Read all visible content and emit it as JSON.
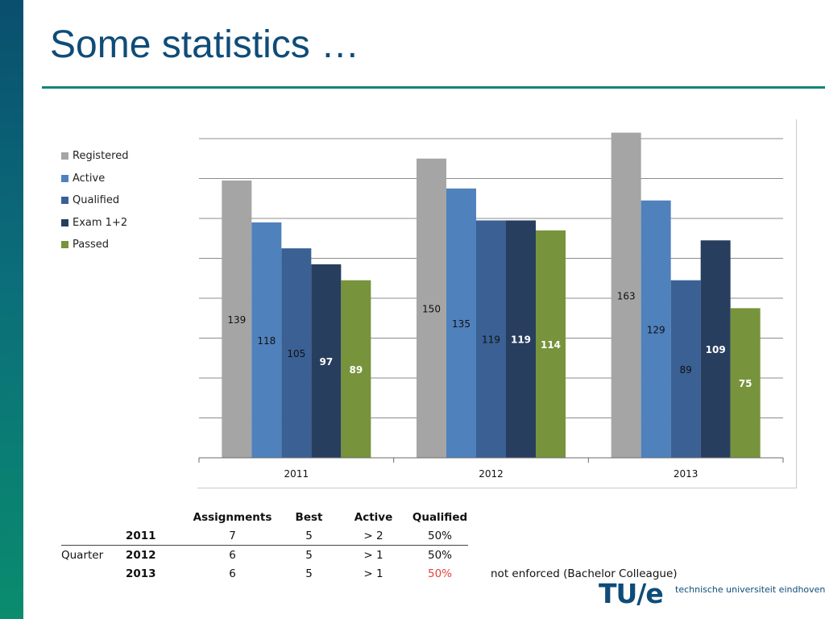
{
  "slide": {
    "title": "Some statistics …"
  },
  "chart_data": {
    "type": "bar",
    "categories": [
      "2011",
      "2012",
      "2013"
    ],
    "ylim": [
      0,
      160
    ],
    "grid": true,
    "legend_position": "left",
    "series": [
      {
        "name": "Registered",
        "color": "#a5a5a5",
        "values": [
          139,
          150,
          163
        ]
      },
      {
        "name": "Active",
        "color": "#4f81bd",
        "values": [
          118,
          135,
          129
        ]
      },
      {
        "name": "Qualified",
        "color": "#3a6094",
        "values": [
          105,
          119,
          89
        ]
      },
      {
        "name": "Exam 1+2",
        "color": "#283e5f",
        "values": [
          97,
          119,
          109
        ]
      },
      {
        "name": "Passed",
        "color": "#77933c",
        "values": [
          89,
          114,
          75
        ]
      }
    ],
    "data_labels": [
      [
        "139",
        "118",
        "105",
        "97",
        "89"
      ],
      [
        "150",
        "135",
        "119",
        "119",
        "114"
      ],
      [
        "163",
        "129",
        "89",
        "109",
        "75"
      ]
    ]
  },
  "table": {
    "headers": [
      "Assignments",
      "Best",
      "Active",
      "Qualified"
    ],
    "row_group_label": "Quarter",
    "rows": [
      {
        "year": "2011",
        "assignments": "7",
        "best": "5",
        "active": "> 2",
        "qualified": "50%",
        "note": ""
      },
      {
        "year": "2012",
        "assignments": "6",
        "best": "5",
        "active": "> 1",
        "qualified": "50%",
        "note": ""
      },
      {
        "year": "2013",
        "assignments": "6",
        "best": "5",
        "active": "> 1",
        "qualified": "50%",
        "note": "not enforced (Bachelor Colleague)"
      }
    ],
    "highlight_color": "#e8403a"
  },
  "logo": {
    "mark": "TU/e",
    "text": "technische universiteit eindhoven",
    "color": "#0f4c78"
  }
}
